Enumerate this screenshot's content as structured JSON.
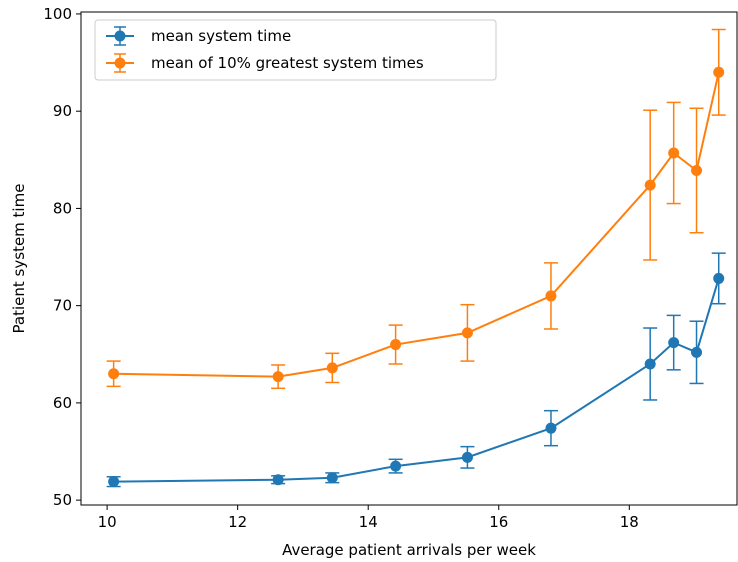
{
  "chart_data": {
    "type": "line",
    "title": "",
    "xlabel": "Average patient arrivals per week",
    "ylabel": "Patient system time",
    "xlim": [
      9.6,
      19.65
    ],
    "ylim": [
      49.5,
      100.2
    ],
    "xticks": [
      10,
      12,
      14,
      16,
      18
    ],
    "yticks": [
      50,
      60,
      70,
      80,
      90,
      100
    ],
    "grid": false,
    "legend_position": "upper-left",
    "errorbars": true,
    "series": [
      {
        "name": "mean system time",
        "color": "#1f77b4",
        "x": [
          10.1,
          12.62,
          13.45,
          14.42,
          15.52,
          16.8,
          18.32,
          18.68,
          19.03,
          19.37
        ],
        "y": [
          51.9,
          52.1,
          52.3,
          53.5,
          54.4,
          57.4,
          64.0,
          66.2,
          65.2,
          72.8
        ],
        "err": [
          0.5,
          0.4,
          0.5,
          0.7,
          1.1,
          1.8,
          3.7,
          2.8,
          3.2,
          2.6
        ]
      },
      {
        "name": "mean of 10% greatest system times",
        "color": "#ff7f0e",
        "x": [
          10.1,
          12.62,
          13.45,
          14.42,
          15.52,
          16.8,
          18.32,
          18.68,
          19.03,
          19.37
        ],
        "y": [
          63.0,
          62.7,
          63.6,
          66.0,
          67.2,
          71.0,
          82.4,
          85.7,
          83.9,
          94.0
        ],
        "err": [
          1.3,
          1.2,
          1.5,
          2.0,
          2.9,
          3.4,
          7.7,
          5.2,
          6.4,
          4.4
        ]
      }
    ]
  }
}
